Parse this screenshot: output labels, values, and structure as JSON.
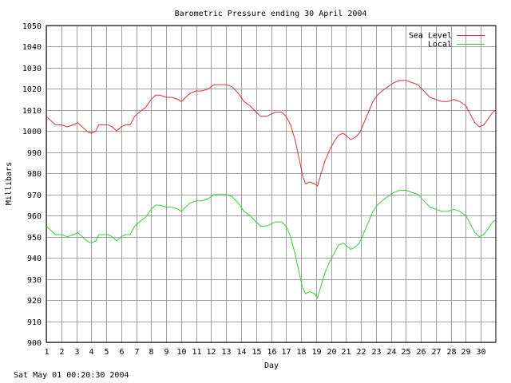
{
  "chart_data": {
    "type": "line",
    "title": "Barometric Pressure ending 30 April 2004",
    "xlabel": "Day",
    "ylabel": "Millibars",
    "xlim": [
      1,
      31
    ],
    "ylim": [
      900,
      1050
    ],
    "yticks": [
      900,
      910,
      920,
      930,
      940,
      950,
      960,
      970,
      980,
      990,
      1000,
      1010,
      1020,
      1030,
      1040,
      1050
    ],
    "xticks": [
      1,
      2,
      3,
      4,
      5,
      6,
      7,
      8,
      9,
      10,
      11,
      12,
      13,
      14,
      15,
      16,
      17,
      18,
      19,
      20,
      21,
      22,
      23,
      24,
      25,
      26,
      27,
      28,
      29,
      30
    ],
    "grid": true,
    "legend_position": "top-right",
    "series": [
      {
        "name": "Sea Level",
        "color": "#e03030",
        "points": [
          [
            1.0,
            1007
          ],
          [
            1.3,
            1005
          ],
          [
            1.6,
            1003
          ],
          [
            2.0,
            1003
          ],
          [
            2.4,
            1002
          ],
          [
            2.8,
            1003
          ],
          [
            3.1,
            1004
          ],
          [
            3.4,
            1002
          ],
          [
            3.7,
            1000
          ],
          [
            4.0,
            999
          ],
          [
            4.3,
            1000
          ],
          [
            4.5,
            1003
          ],
          [
            4.8,
            1003
          ],
          [
            5.1,
            1003
          ],
          [
            5.4,
            1002
          ],
          [
            5.7,
            1000
          ],
          [
            6.0,
            1002
          ],
          [
            6.3,
            1003
          ],
          [
            6.6,
            1003
          ],
          [
            6.9,
            1007
          ],
          [
            7.2,
            1009
          ],
          [
            7.6,
            1011
          ],
          [
            8.0,
            1015
          ],
          [
            8.3,
            1017
          ],
          [
            8.6,
            1017
          ],
          [
            9.0,
            1016
          ],
          [
            9.4,
            1016
          ],
          [
            9.8,
            1015
          ],
          [
            10.0,
            1014
          ],
          [
            10.3,
            1016
          ],
          [
            10.6,
            1018
          ],
          [
            11.0,
            1019
          ],
          [
            11.4,
            1019
          ],
          [
            11.8,
            1020
          ],
          [
            12.2,
            1022
          ],
          [
            12.6,
            1022
          ],
          [
            13.0,
            1022
          ],
          [
            13.4,
            1021
          ],
          [
            13.8,
            1018
          ],
          [
            14.2,
            1014
          ],
          [
            14.6,
            1012
          ],
          [
            15.0,
            1009
          ],
          [
            15.3,
            1007
          ],
          [
            15.7,
            1007
          ],
          [
            16.0,
            1008
          ],
          [
            16.3,
            1009
          ],
          [
            16.7,
            1009
          ],
          [
            17.0,
            1007
          ],
          [
            17.3,
            1003
          ],
          [
            17.6,
            996
          ],
          [
            17.9,
            986
          ],
          [
            18.1,
            979
          ],
          [
            18.3,
            975
          ],
          [
            18.6,
            976
          ],
          [
            18.9,
            975
          ],
          [
            19.1,
            974
          ],
          [
            19.3,
            979
          ],
          [
            19.6,
            986
          ],
          [
            19.9,
            991
          ],
          [
            20.2,
            995
          ],
          [
            20.5,
            998
          ],
          [
            20.8,
            999
          ],
          [
            21.0,
            998
          ],
          [
            21.3,
            996
          ],
          [
            21.6,
            997
          ],
          [
            21.9,
            999
          ],
          [
            22.2,
            1004
          ],
          [
            22.5,
            1009
          ],
          [
            22.8,
            1014
          ],
          [
            23.1,
            1017
          ],
          [
            23.4,
            1019
          ],
          [
            23.8,
            1021
          ],
          [
            24.2,
            1023
          ],
          [
            24.6,
            1024
          ],
          [
            25.0,
            1024
          ],
          [
            25.4,
            1023
          ],
          [
            25.8,
            1022
          ],
          [
            26.2,
            1019
          ],
          [
            26.6,
            1016
          ],
          [
            27.0,
            1015
          ],
          [
            27.4,
            1014
          ],
          [
            27.8,
            1014
          ],
          [
            28.2,
            1015
          ],
          [
            28.6,
            1014
          ],
          [
            29.0,
            1012
          ],
          [
            29.3,
            1008
          ],
          [
            29.6,
            1004
          ],
          [
            29.9,
            1002
          ],
          [
            30.2,
            1003
          ],
          [
            30.5,
            1006
          ],
          [
            30.8,
            1009
          ],
          [
            31.0,
            1010
          ]
        ]
      },
      {
        "name": "Local",
        "color": "#30d030",
        "points": [
          [
            1.0,
            955
          ],
          [
            1.3,
            953
          ],
          [
            1.6,
            951
          ],
          [
            2.0,
            951
          ],
          [
            2.4,
            950
          ],
          [
            2.8,
            951
          ],
          [
            3.1,
            952
          ],
          [
            3.4,
            950
          ],
          [
            3.7,
            948
          ],
          [
            4.0,
            947
          ],
          [
            4.3,
            948
          ],
          [
            4.5,
            951
          ],
          [
            4.8,
            951
          ],
          [
            5.1,
            951
          ],
          [
            5.4,
            950
          ],
          [
            5.7,
            948
          ],
          [
            6.0,
            950
          ],
          [
            6.3,
            951
          ],
          [
            6.6,
            951
          ],
          [
            6.9,
            955
          ],
          [
            7.2,
            957
          ],
          [
            7.6,
            959
          ],
          [
            8.0,
            963
          ],
          [
            8.3,
            965
          ],
          [
            8.6,
            965
          ],
          [
            9.0,
            964
          ],
          [
            9.4,
            964
          ],
          [
            9.8,
            963
          ],
          [
            10.0,
            962
          ],
          [
            10.3,
            964
          ],
          [
            10.6,
            966
          ],
          [
            11.0,
            967
          ],
          [
            11.4,
            967
          ],
          [
            11.8,
            968
          ],
          [
            12.2,
            970
          ],
          [
            12.6,
            970
          ],
          [
            13.0,
            970
          ],
          [
            13.4,
            969
          ],
          [
            13.8,
            966
          ],
          [
            14.2,
            962
          ],
          [
            14.6,
            960
          ],
          [
            15.0,
            957
          ],
          [
            15.3,
            955
          ],
          [
            15.7,
            955
          ],
          [
            16.0,
            956
          ],
          [
            16.3,
            957
          ],
          [
            16.7,
            957
          ],
          [
            17.0,
            955
          ],
          [
            17.3,
            950
          ],
          [
            17.6,
            942
          ],
          [
            17.9,
            932
          ],
          [
            18.1,
            926
          ],
          [
            18.3,
            923
          ],
          [
            18.6,
            924
          ],
          [
            18.9,
            923
          ],
          [
            19.1,
            921
          ],
          [
            19.3,
            926
          ],
          [
            19.6,
            933
          ],
          [
            19.9,
            938
          ],
          [
            20.2,
            942
          ],
          [
            20.5,
            946
          ],
          [
            20.8,
            947
          ],
          [
            21.0,
            946
          ],
          [
            21.3,
            944
          ],
          [
            21.6,
            945
          ],
          [
            21.9,
            947
          ],
          [
            22.2,
            952
          ],
          [
            22.5,
            957
          ],
          [
            22.8,
            962
          ],
          [
            23.1,
            965
          ],
          [
            23.4,
            967
          ],
          [
            23.8,
            969
          ],
          [
            24.2,
            971
          ],
          [
            24.6,
            972
          ],
          [
            25.0,
            972
          ],
          [
            25.4,
            971
          ],
          [
            25.8,
            970
          ],
          [
            26.2,
            967
          ],
          [
            26.6,
            964
          ],
          [
            27.0,
            963
          ],
          [
            27.4,
            962
          ],
          [
            27.8,
            962
          ],
          [
            28.2,
            963
          ],
          [
            28.6,
            962
          ],
          [
            29.0,
            960
          ],
          [
            29.3,
            956
          ],
          [
            29.6,
            952
          ],
          [
            29.9,
            950
          ],
          [
            30.2,
            951
          ],
          [
            30.5,
            954
          ],
          [
            30.8,
            957
          ],
          [
            31.0,
            958
          ]
        ]
      }
    ]
  },
  "footer": {
    "timestamp": "Sat May 01 00:20:30 2004"
  }
}
